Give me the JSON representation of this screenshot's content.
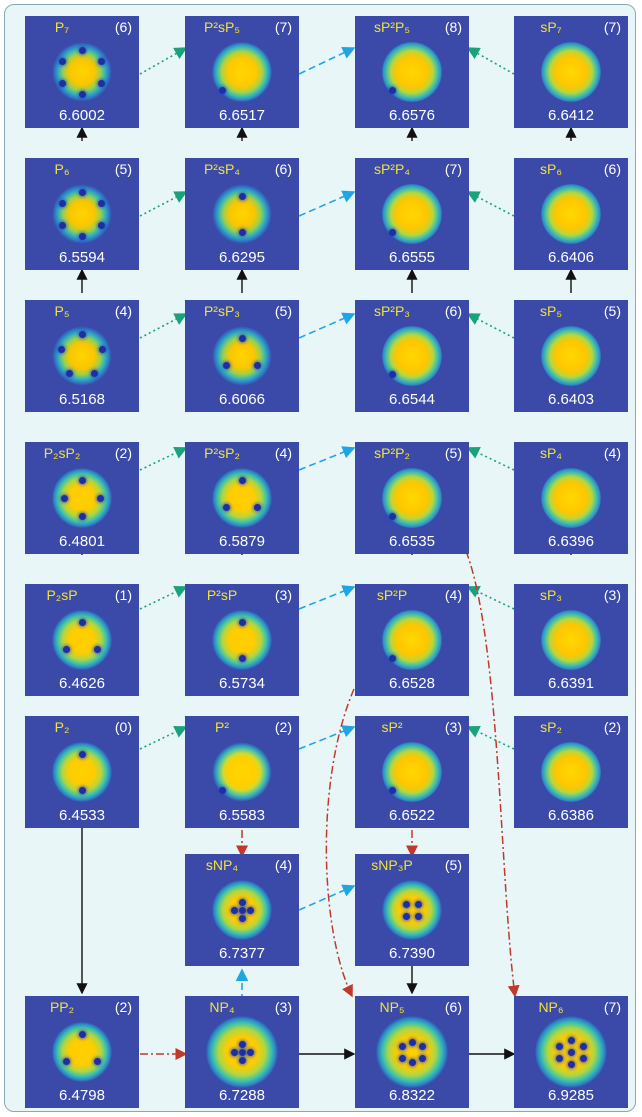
{
  "panels": [
    {
      "id": "P7",
      "label": "P₇",
      "num": "(6)",
      "value": "6.6002",
      "style": "b5",
      "dots": 6
    },
    {
      "id": "P2sP5",
      "label": "P²sP₅",
      "num": "(7)",
      "value": "6.6517",
      "style": "b6",
      "dots": 1
    },
    {
      "id": "sP2P5",
      "label": "sP²P₅",
      "num": "(8)",
      "value": "6.6576",
      "style": "b7",
      "dots": 1
    },
    {
      "id": "sP7",
      "label": "sP₇",
      "num": "(7)",
      "value": "6.6412",
      "style": "b7",
      "dots": 0
    },
    {
      "id": "P6",
      "label": "P₆",
      "num": "(5)",
      "value": "6.5594",
      "style": "b5",
      "dots": 6
    },
    {
      "id": "P2sP4",
      "label": "P²sP₄",
      "num": "(6)",
      "value": "6.6295",
      "style": "b5",
      "dots": 2
    },
    {
      "id": "sP2P4",
      "label": "sP²P₄",
      "num": "(7)",
      "value": "6.6555",
      "style": "b7",
      "dots": 1
    },
    {
      "id": "sP6",
      "label": "sP₆",
      "num": "(6)",
      "value": "6.6406",
      "style": "b7",
      "dots": 0
    },
    {
      "id": "P5",
      "label": "P₅",
      "num": "(4)",
      "value": "6.5168",
      "style": "b5",
      "dots": 5
    },
    {
      "id": "P2sP3",
      "label": "P²sP₃",
      "num": "(5)",
      "value": "6.6066",
      "style": "b5",
      "dots": 3
    },
    {
      "id": "sP2P3",
      "label": "sP²P₃",
      "num": "(6)",
      "value": "6.6544",
      "style": "b7",
      "dots": 1
    },
    {
      "id": "sP5",
      "label": "sP₅",
      "num": "(5)",
      "value": "6.6403",
      "style": "b7",
      "dots": 0
    },
    {
      "id": "P2sP2",
      "label": "P₂sP₂",
      "num": "(2)",
      "value": "6.4801",
      "style": "b3",
      "dots": 4
    },
    {
      "id": "P2sP2b",
      "label": "P²sP₂",
      "num": "(4)",
      "value": "6.5879",
      "style": "b3",
      "dots": 3
    },
    {
      "id": "sP2P2",
      "label": "sP²P₂",
      "num": "(5)",
      "value": "6.6535",
      "style": "b7",
      "dots": 1
    },
    {
      "id": "sP4",
      "label": "sP₄",
      "num": "(4)",
      "value": "6.6396",
      "style": "b7",
      "dots": 0
    },
    {
      "id": "P2sP",
      "label": "P₂sP",
      "num": "(1)",
      "value": "6.4626",
      "style": "b3",
      "dots": 3
    },
    {
      "id": "P2sPb",
      "label": "P²sP",
      "num": "(3)",
      "value": "6.5734",
      "style": "b3",
      "dots": 2
    },
    {
      "id": "sP2P",
      "label": "sP²P",
      "num": "(4)",
      "value": "6.6528",
      "style": "b7",
      "dots": 1
    },
    {
      "id": "sP3",
      "label": "sP₃",
      "num": "(3)",
      "value": "6.6391",
      "style": "b7",
      "dots": 0
    },
    {
      "id": "P2",
      "label": "P₂",
      "num": "(0)",
      "value": "6.4533",
      "style": "b3",
      "dots": 2
    },
    {
      "id": "Psq",
      "label": "P²",
      "num": "(2)",
      "value": "6.5583",
      "style": "ring",
      "dots": 1
    },
    {
      "id": "sP2",
      "label": "sP²",
      "num": "(3)",
      "value": "6.6522",
      "style": "b7",
      "dots": 1
    },
    {
      "id": "sP2b",
      "label": "sP₂",
      "num": "(2)",
      "value": "6.6386",
      "style": "b7",
      "dots": 0
    },
    {
      "id": "sNP4",
      "label": "sNP₄",
      "num": "(4)",
      "value": "6.7377",
      "style": "b3",
      "dots": 5
    },
    {
      "id": "sNP3P",
      "label": "sNP₃P",
      "num": "(5)",
      "value": "6.7390",
      "style": "b3",
      "dots": 4
    },
    {
      "id": "PP2",
      "label": "PP₂",
      "num": "(2)",
      "value": "6.4798",
      "style": "b3",
      "dots": 3
    },
    {
      "id": "NP4",
      "label": "NP₄",
      "num": "(3)",
      "value": "6.7288",
      "style": "big",
      "dots": 5
    },
    {
      "id": "NP5",
      "label": "NP₅",
      "num": "(6)",
      "value": "6.8322",
      "style": "big",
      "dots": 6
    },
    {
      "id": "NP6",
      "label": "NP₆",
      "num": "(7)",
      "value": "6.9285",
      "style": "big",
      "dots": 7
    }
  ],
  "colors": {
    "panel_bg": "#3b4aa8",
    "label": "#f2e23a",
    "arrow_solid": "#111111",
    "arrow_dotted_green": "#1aa37a",
    "arrow_dashed_blue": "#1ea5e6",
    "arrow_dashdot_red": "#c0392b"
  }
}
